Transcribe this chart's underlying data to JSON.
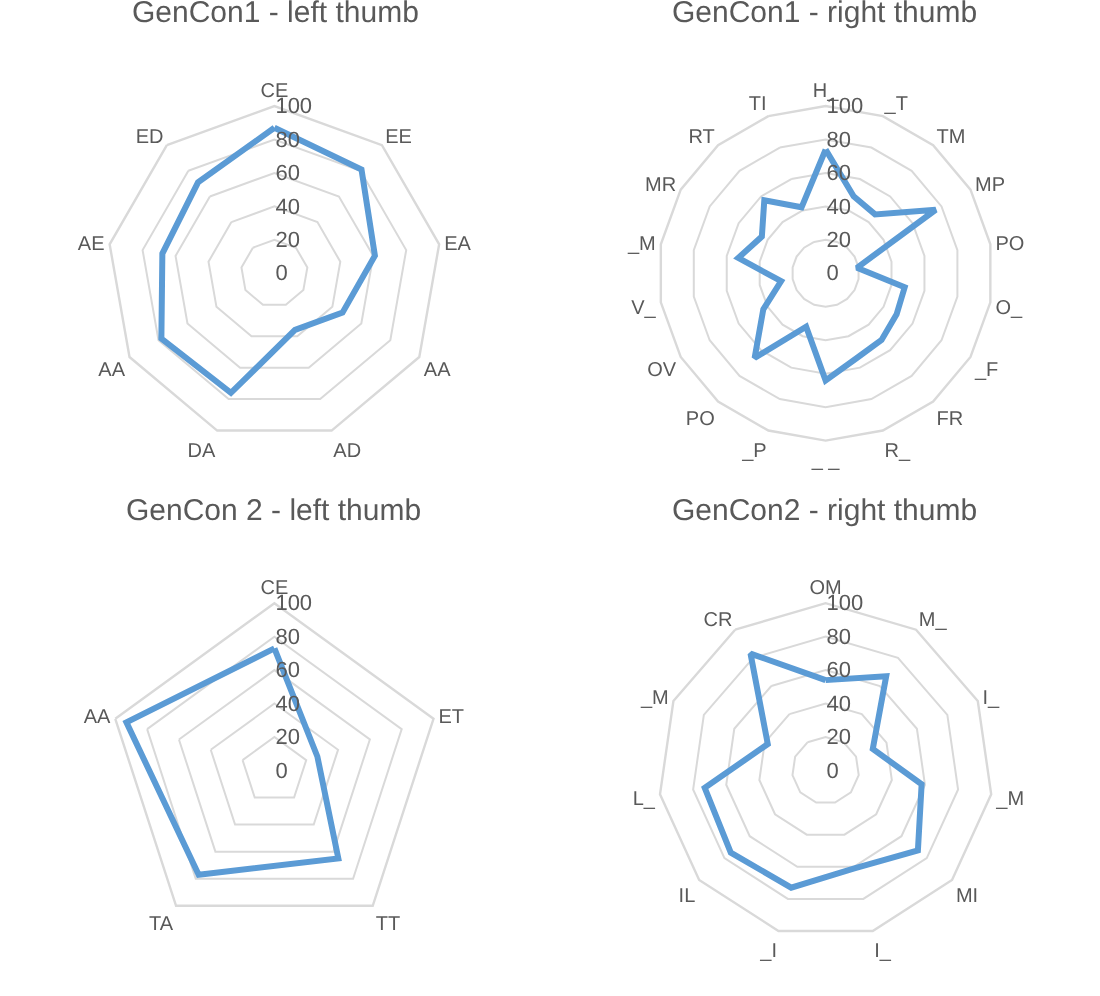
{
  "chart_data": [
    {
      "type": "radar",
      "title": "GenCon1 - left thumb",
      "categories": [
        "CE",
        "EE",
        "EA",
        "AA",
        "AD",
        "DA",
        "AA",
        "AE",
        "ED"
      ],
      "series": [
        {
          "color": "#5b9bd5",
          "values": [
            87,
            81,
            61,
            47,
            36,
            76,
            78,
            68,
            71
          ]
        }
      ],
      "ylim": [
        0,
        100
      ],
      "yticks": [
        0,
        20,
        40,
        60,
        80,
        100
      ],
      "grid": true,
      "marker": "none",
      "line_style": "solid"
    },
    {
      "type": "radar",
      "title": "GenCon1 - right thumb",
      "categories": [
        "H_",
        "_T",
        "TM",
        "MP",
        "PO",
        "O_",
        "_F",
        "FR",
        "R_",
        "_ _",
        "_P",
        "PO",
        "OV",
        "V_",
        "_M",
        "MR",
        "RT",
        "TI"
      ],
      "series": [
        {
          "color": "#5b9bd5",
          "values": [
            74,
            49,
            46,
            76,
            19,
            48,
            49,
            52,
            54,
            64,
            34,
            66,
            43,
            27,
            53,
            44,
            57,
            42
          ]
        }
      ],
      "ylim": [
        0,
        100
      ],
      "yticks": [
        0,
        20,
        40,
        60,
        80,
        100
      ],
      "grid": true,
      "marker": "none",
      "line_style": "solid"
    },
    {
      "type": "radar",
      "title": "GenCon 2 - left thumb",
      "categories": [
        "CE",
        "ET",
        "TT",
        "TA",
        "AA"
      ],
      "series": [
        {
          "color": "#5b9bd5",
          "values": [
            73,
            27,
            65,
            77,
            93
          ]
        }
      ],
      "ylim": [
        0,
        100
      ],
      "yticks": [
        0,
        20,
        40,
        60,
        80,
        100
      ],
      "grid": true,
      "marker": "none",
      "line_style": "solid"
    },
    {
      "type": "radar",
      "title": "GenCon2 - right thumb",
      "categories": [
        "OM",
        "M_",
        "I_",
        "_M",
        "MI",
        "I_",
        "_I",
        "IL",
        "L_",
        "_M",
        "CR"
      ],
      "series": [
        {
          "color": "#5b9bd5",
          "values": [
            54,
            67,
            31,
            58,
            73,
            61,
            73,
            75,
            73,
            38,
            83
          ]
        }
      ],
      "ylim": [
        0,
        100
      ],
      "yticks": [
        0,
        20,
        40,
        60,
        80,
        100
      ],
      "grid": true,
      "marker": "none",
      "line_style": "solid"
    }
  ]
}
